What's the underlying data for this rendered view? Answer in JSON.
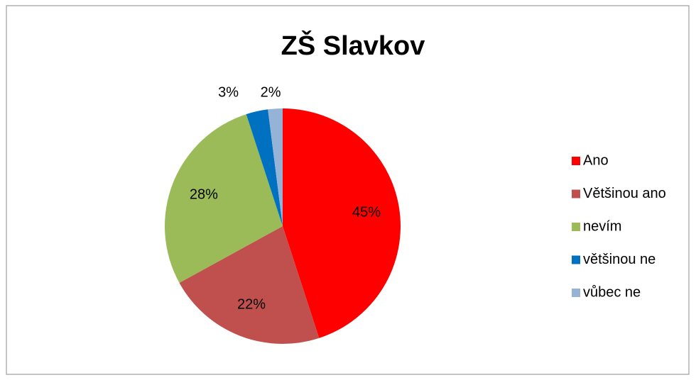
{
  "chart_data": {
    "type": "pie",
    "title": "ZŠ Slavkov",
    "categories": [
      "Ano",
      "Většinou ano",
      "nevím",
      "většinou ne",
      "vůbec ne"
    ],
    "values": [
      45,
      22,
      28,
      3,
      2
    ],
    "value_labels": [
      "45%",
      "22%",
      "28%",
      "3%",
      "2%"
    ],
    "colors": [
      "#ff0000",
      "#c0504d",
      "#9bbb59",
      "#0070c0",
      "#95b3d7"
    ],
    "legend": "right"
  }
}
